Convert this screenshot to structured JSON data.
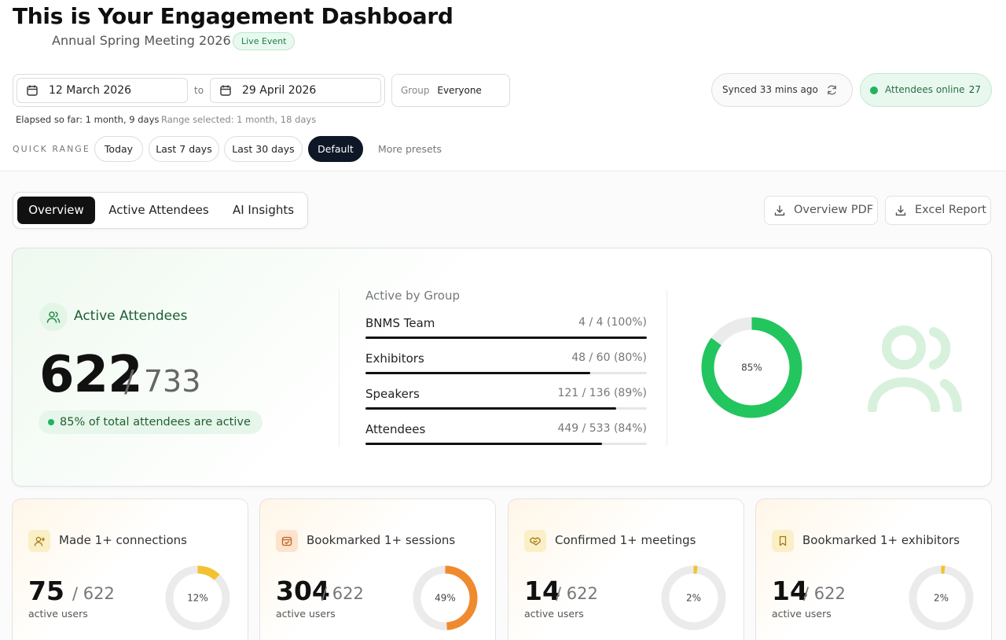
{
  "header": {
    "title": "This is Your Engagement Dashboard",
    "event_name": "Annual Spring Meeting 2026",
    "event_badge": "Live Event"
  },
  "filters": {
    "start_date": "12 March 2026",
    "to_label": "to",
    "end_date": "29 April 2026",
    "group_label": "Group",
    "group_value": "Everyone",
    "elapsed": "Elapsed so far: 1 month, 9 days",
    "range_selected": "Range selected: 1 month, 18 days",
    "quick_range_label": "QUICK RANGE",
    "quick_ranges": [
      "Today",
      "Last 7 days",
      "Last 30 days",
      "Default"
    ],
    "active_quick_range": "Default",
    "more_presets": "More presets"
  },
  "status": {
    "synced": "Synced 33 mins ago",
    "online_label": "Attendees online",
    "online_count": "27",
    "online_color": "#22b35e"
  },
  "tabs": {
    "items": [
      "Overview",
      "Active Attendees",
      "AI Insights"
    ],
    "active": "Overview"
  },
  "exports": {
    "pdf": "Overview PDF",
    "excel": "Excel Report"
  },
  "active_attendees": {
    "title": "Active Attendees",
    "active": "622",
    "total": "/ 733",
    "summary": "85% of total attendees are active",
    "percent": 85,
    "percent_label": "85%",
    "accent": "#22c55e",
    "by_group_title": "Active by Group",
    "groups": [
      {
        "name": "BNMS Team",
        "value": "4 / 4 (100%)",
        "fraction": 1.0
      },
      {
        "name": "Exhibitors",
        "value": "48 / 60 (80%)",
        "fraction": 0.8
      },
      {
        "name": "Speakers",
        "value": "121 / 136 (89%)",
        "fraction": 0.89
      },
      {
        "name": "Attendees",
        "value": "449 / 533 (84%)",
        "fraction": 0.84
      }
    ]
  },
  "stats": [
    {
      "title": "Made 1+ connections",
      "value": "75",
      "total": "/ 622",
      "sub": "active users",
      "percent": 12,
      "percent_label": "12%",
      "color": "#f2c230",
      "icon": "user-plus-icon"
    },
    {
      "title": "Bookmarked 1+ sessions",
      "value": "304",
      "total": "/ 622",
      "sub": "active users",
      "percent": 49,
      "percent_label": "49%",
      "color": "#f08a2e",
      "icon": "calendar-check-icon"
    },
    {
      "title": "Confirmed 1+ meetings",
      "value": "14",
      "total": "/ 622",
      "sub": "active users",
      "percent": 2,
      "percent_label": "2%",
      "color": "#f2c230",
      "icon": "handshake-icon"
    },
    {
      "title": "Bookmarked 1+ exhibitors",
      "value": "14",
      "total": "/ 622",
      "sub": "active users",
      "percent": 2,
      "percent_label": "2%",
      "color": "#f2c230",
      "icon": "bookmark-icon"
    }
  ]
}
